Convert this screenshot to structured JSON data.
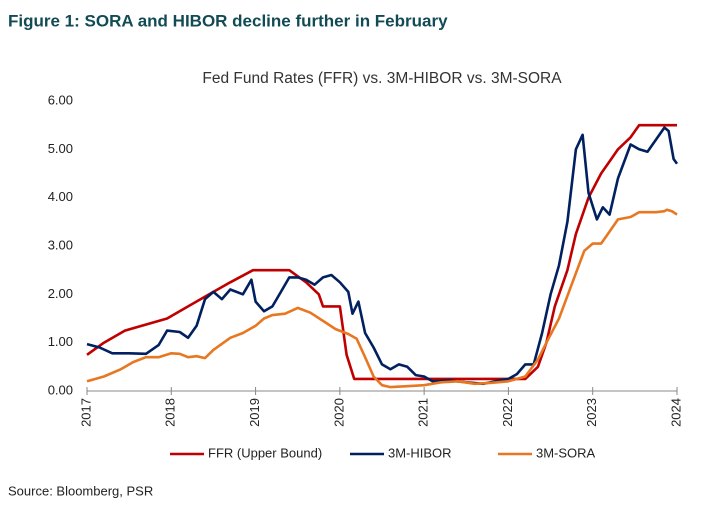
{
  "figure_title": "Figure 1: SORA and HIBOR decline further in February",
  "source": "Source: Bloomberg, PSR",
  "chart_data": {
    "type": "line",
    "title": "Fed Fund Rates (FFR) vs. 3M-HIBOR vs. 3M-SORA",
    "xlim": [
      2017,
      2024
    ],
    "xticks": [
      2017,
      2018,
      2019,
      2020,
      2021,
      2022,
      2023,
      2024
    ],
    "ylim": [
      0,
      6
    ],
    "yticks": [
      {
        "value": 0,
        "label": "0.00"
      },
      {
        "value": 1,
        "label": "1.00"
      },
      {
        "value": 2,
        "label": "2.00"
      },
      {
        "value": 3,
        "label": "3.00"
      },
      {
        "value": 4,
        "label": "4.00"
      },
      {
        "value": 5,
        "label": "5.00"
      },
      {
        "value": 6,
        "label": "6.00"
      }
    ],
    "grid": false,
    "legend": "bottom",
    "series": [
      {
        "name": "FFR (Upper Bound)",
        "color": "#c00000",
        "x": [
          2017.0,
          2017.2,
          2017.45,
          2017.95,
          2018.2,
          2018.45,
          2018.7,
          2018.97,
          2019.4,
          2019.6,
          2019.75,
          2019.8,
          2020.0,
          2020.08,
          2020.17,
          2022.2,
          2022.35,
          2022.45,
          2022.55,
          2022.7,
          2022.8,
          2022.95,
          2023.1,
          2023.2,
          2023.3,
          2023.45,
          2023.55,
          2024.0
        ],
        "values": [
          0.75,
          1.0,
          1.25,
          1.5,
          1.75,
          2.0,
          2.25,
          2.5,
          2.5,
          2.25,
          2.0,
          1.75,
          1.75,
          0.75,
          0.25,
          0.25,
          0.5,
          1.0,
          1.75,
          2.5,
          3.25,
          4.0,
          4.5,
          4.75,
          5.0,
          5.25,
          5.5,
          5.5
        ]
      },
      {
        "name": "3M-HIBOR",
        "color": "#002060",
        "x": [
          2017.0,
          2017.15,
          2017.3,
          2017.5,
          2017.7,
          2017.85,
          2017.95,
          2018.1,
          2018.2,
          2018.3,
          2018.4,
          2018.5,
          2018.6,
          2018.7,
          2018.85,
          2018.95,
          2019.0,
          2019.1,
          2019.2,
          2019.3,
          2019.4,
          2019.5,
          2019.6,
          2019.7,
          2019.8,
          2019.9,
          2020.0,
          2020.1,
          2020.15,
          2020.22,
          2020.3,
          2020.4,
          2020.5,
          2020.6,
          2020.7,
          2020.8,
          2020.9,
          2021.0,
          2021.1,
          2021.3,
          2021.5,
          2021.7,
          2021.9,
          2022.0,
          2022.1,
          2022.2,
          2022.3,
          2022.4,
          2022.5,
          2022.6,
          2022.7,
          2022.8,
          2022.88,
          2022.95,
          2023.05,
          2023.12,
          2023.2,
          2023.3,
          2023.45,
          2023.55,
          2023.65,
          2023.75,
          2023.85,
          2023.9,
          2023.96,
          2024.0
        ],
        "values": [
          0.97,
          0.9,
          0.78,
          0.78,
          0.77,
          0.95,
          1.25,
          1.22,
          1.1,
          1.35,
          1.9,
          2.05,
          1.9,
          2.1,
          2.0,
          2.3,
          1.85,
          1.65,
          1.75,
          2.05,
          2.35,
          2.35,
          2.3,
          2.2,
          2.35,
          2.4,
          2.25,
          2.05,
          1.6,
          1.85,
          1.2,
          0.9,
          0.55,
          0.45,
          0.55,
          0.5,
          0.33,
          0.3,
          0.2,
          0.22,
          0.18,
          0.15,
          0.22,
          0.25,
          0.35,
          0.55,
          0.55,
          1.2,
          2.0,
          2.6,
          3.5,
          5.0,
          5.3,
          4.1,
          3.55,
          3.8,
          3.65,
          4.4,
          5.1,
          5.0,
          4.95,
          5.2,
          5.45,
          5.38,
          4.8,
          4.7
        ]
      },
      {
        "name": "3M-SORA",
        "color": "#e87722",
        "x": [
          2017.0,
          2017.2,
          2017.4,
          2017.55,
          2017.7,
          2017.85,
          2018.0,
          2018.1,
          2018.2,
          2018.3,
          2018.4,
          2018.5,
          2018.7,
          2018.85,
          2019.0,
          2019.1,
          2019.2,
          2019.35,
          2019.5,
          2019.65,
          2019.8,
          2019.95,
          2020.1,
          2020.2,
          2020.3,
          2020.4,
          2020.5,
          2020.6,
          2020.8,
          2021.0,
          2021.2,
          2021.4,
          2021.6,
          2021.8,
          2022.0,
          2022.2,
          2022.35,
          2022.45,
          2022.6,
          2022.75,
          2022.9,
          2023.0,
          2023.1,
          2023.2,
          2023.3,
          2023.45,
          2023.55,
          2023.75,
          2023.85,
          2023.88,
          2023.94,
          2024.0
        ],
        "values": [
          0.2,
          0.3,
          0.45,
          0.6,
          0.7,
          0.7,
          0.78,
          0.77,
          0.7,
          0.72,
          0.68,
          0.85,
          1.1,
          1.2,
          1.35,
          1.5,
          1.57,
          1.6,
          1.72,
          1.62,
          1.45,
          1.28,
          1.18,
          1.08,
          0.7,
          0.3,
          0.12,
          0.08,
          0.1,
          0.12,
          0.18,
          0.2,
          0.15,
          0.17,
          0.2,
          0.3,
          0.65,
          1.0,
          1.5,
          2.2,
          2.9,
          3.05,
          3.05,
          3.3,
          3.55,
          3.6,
          3.7,
          3.7,
          3.72,
          3.75,
          3.72,
          3.65
        ]
      }
    ]
  }
}
